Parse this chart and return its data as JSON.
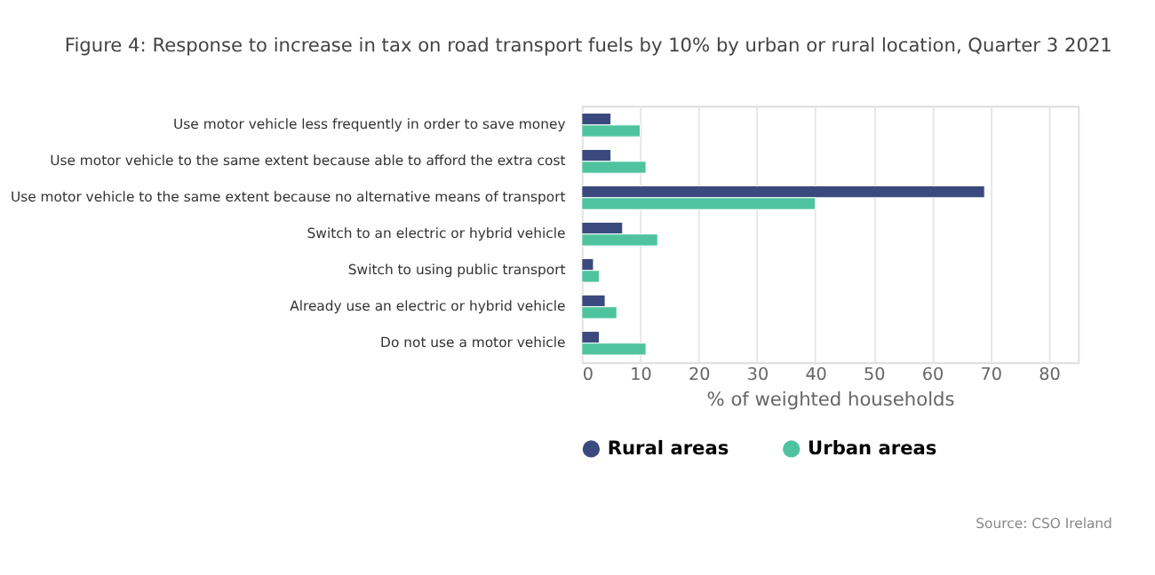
{
  "chart_data": {
    "type": "bar",
    "orientation": "horizontal",
    "title": "Figure 4: Response to increase in tax on road transport fuels by 10% by urban or rural location, Quarter 3 2021",
    "xlabel": "% of weighted households",
    "categories": [
      "Use motor vehicle less frequently in order to save money",
      "Use motor vehicle to the same extent because able to afford the extra cost",
      "Use motor vehicle to the same extent because no alternative means of transport",
      "Switch to an electric or hybrid vehicle",
      "Switch to using public transport",
      "Already use an electric or hybrid vehicle",
      "Do not use a motor vehicle"
    ],
    "series": [
      {
        "name": "Rural areas",
        "color": "#3b4a7e",
        "values": [
          5,
          5,
          69,
          7,
          2,
          4,
          3
        ]
      },
      {
        "name": "Urban areas",
        "color": "#4fc39d",
        "values": [
          10,
          11,
          40,
          13,
          3,
          6,
          11
        ]
      }
    ],
    "xlim": [
      0,
      85
    ],
    "xticks": [
      0,
      10,
      20,
      30,
      40,
      50,
      60,
      70,
      80
    ],
    "grid": "x",
    "legend": "bottom",
    "annotations": [
      "Source: CSO Ireland"
    ]
  }
}
